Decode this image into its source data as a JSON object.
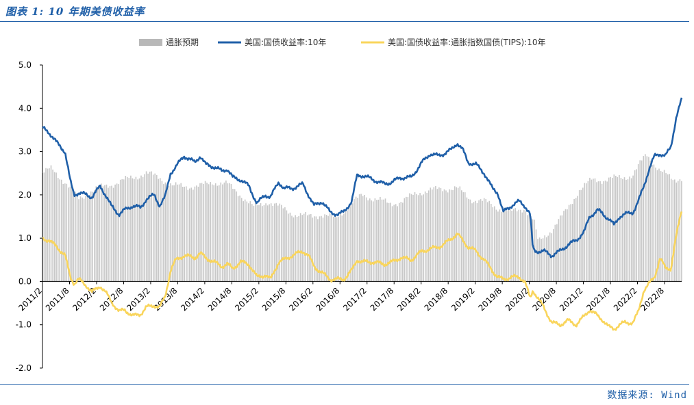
{
  "title": "图表 1: 10 年期美债收益率",
  "source": "数据来源: Wind",
  "colors": {
    "bg": "#ffffff",
    "title": "#1f5fa8",
    "inflation": "#c8c8c8",
    "nominal": "#1f5fa8",
    "tips": "#f9d55c",
    "axis": "#000000"
  },
  "chart_data": {
    "type": "line",
    "title": "10年期美债收益率",
    "xlabel": "",
    "ylabel": "",
    "ylim": [
      -2.0,
      5.0
    ],
    "yticks": [
      "5.0",
      "4.0",
      "3.0",
      "2.0",
      "1.0",
      "0.0",
      "-1.0",
      "-2.0"
    ],
    "ytick_values": [
      5.0,
      4.0,
      3.0,
      2.0,
      1.0,
      0.0,
      -1.0,
      -2.0
    ],
    "x_ticks": [
      "2011/2",
      "2011/8",
      "2012/2",
      "2012/8",
      "2013/2",
      "2013/8",
      "2014/2",
      "2014/8",
      "2015/2",
      "2015/8",
      "2016/2",
      "2016/8",
      "2017/2",
      "2017/8",
      "2018/2",
      "2018/8",
      "2019/2",
      "2019/8",
      "2020/2",
      "2020/8",
      "2021/2",
      "2021/8",
      "2022/2",
      "2022/8"
    ],
    "x_range": [
      2011.083,
      2022.9
    ],
    "legend_position": "top",
    "series": [
      {
        "name": "通胀预期",
        "type": "bar",
        "x": [
          2011.08,
          2011.25,
          2011.5,
          2011.75,
          2012.0,
          2012.25,
          2012.5,
          2012.75,
          2013.0,
          2013.25,
          2013.5,
          2013.75,
          2014.0,
          2014.25,
          2014.5,
          2014.75,
          2015.0,
          2015.25,
          2015.5,
          2015.75,
          2016.0,
          2016.25,
          2016.5,
          2016.75,
          2017.0,
          2017.25,
          2017.5,
          2017.75,
          2018.0,
          2018.25,
          2018.5,
          2018.75,
          2019.0,
          2019.25,
          2019.5,
          2019.75,
          2020.0,
          2020.17,
          2020.25,
          2020.5,
          2020.75,
          2021.0,
          2021.25,
          2021.5,
          2021.75,
          2022.0,
          2022.25,
          2022.5,
          2022.75,
          2022.9
        ],
        "values": [
          2.5,
          2.6,
          2.3,
          1.9,
          2.1,
          2.2,
          2.3,
          2.4,
          2.5,
          2.4,
          2.2,
          2.2,
          2.2,
          2.3,
          2.25,
          2.0,
          1.7,
          1.85,
          1.7,
          1.55,
          1.5,
          1.55,
          1.45,
          1.75,
          2.0,
          1.9,
          1.8,
          1.85,
          2.05,
          2.1,
          2.15,
          2.15,
          1.9,
          1.85,
          1.7,
          1.6,
          1.7,
          1.4,
          0.9,
          1.2,
          1.6,
          2.1,
          2.35,
          2.35,
          2.4,
          2.45,
          2.95,
          2.55,
          2.35,
          2.4
        ]
      },
      {
        "name": "美国:国债收益率:10年",
        "type": "line",
        "x": [
          2011.08,
          2011.2,
          2011.35,
          2011.5,
          2011.6,
          2011.67,
          2011.75,
          2011.9,
          2012.0,
          2012.15,
          2012.25,
          2012.35,
          2012.5,
          2012.6,
          2012.75,
          2012.9,
          2013.0,
          2013.15,
          2013.25,
          2013.35,
          2013.45,
          2013.55,
          2013.7,
          2013.9,
          2014.0,
          2014.1,
          2014.25,
          2014.4,
          2014.5,
          2014.6,
          2014.75,
          2014.9,
          2015.05,
          2015.2,
          2015.3,
          2015.45,
          2015.55,
          2015.7,
          2015.9,
          2016.0,
          2016.1,
          2016.25,
          2016.4,
          2016.55,
          2016.65,
          2016.8,
          2016.9,
          2017.0,
          2017.2,
          2017.4,
          2017.55,
          2017.7,
          2017.9,
          2018.1,
          2018.25,
          2018.4,
          2018.5,
          2018.65,
          2018.75,
          2018.85,
          2018.95,
          2019.1,
          2019.25,
          2019.4,
          2019.5,
          2019.6,
          2019.75,
          2019.9,
          2020.0,
          2020.1,
          2020.15,
          2020.2,
          2020.35,
          2020.5,
          2020.65,
          2020.8,
          2020.95,
          2021.1,
          2021.2,
          2021.35,
          2021.45,
          2021.55,
          2021.65,
          2021.75,
          2021.85,
          2022.0,
          2022.1,
          2022.2,
          2022.3,
          2022.4,
          2022.5,
          2022.6,
          2022.7,
          2022.8,
          2022.9
        ],
        "values": [
          3.55,
          3.45,
          3.2,
          3.0,
          2.3,
          2.0,
          2.05,
          2.0,
          1.95,
          2.2,
          2.0,
          1.75,
          1.55,
          1.65,
          1.75,
          1.7,
          1.9,
          2.0,
          1.75,
          1.95,
          2.5,
          2.65,
          2.9,
          2.75,
          2.9,
          2.7,
          2.65,
          2.55,
          2.6,
          2.4,
          2.35,
          2.2,
          1.8,
          2.0,
          1.95,
          2.3,
          2.15,
          2.15,
          2.25,
          2.0,
          1.75,
          1.85,
          1.6,
          1.55,
          1.6,
          1.85,
          2.45,
          2.45,
          2.35,
          2.25,
          2.3,
          2.4,
          2.4,
          2.75,
          2.95,
          2.9,
          2.95,
          3.05,
          3.2,
          3.05,
          2.75,
          2.7,
          2.5,
          2.15,
          2.05,
          1.6,
          1.75,
          1.85,
          1.75,
          1.55,
          0.75,
          0.7,
          0.7,
          0.6,
          0.7,
          0.85,
          0.95,
          1.15,
          1.5,
          1.65,
          1.55,
          1.45,
          1.3,
          1.5,
          1.55,
          1.6,
          1.85,
          2.2,
          2.6,
          2.9,
          2.95,
          2.9,
          3.1,
          3.8,
          4.2
        ]
      },
      {
        "name": "美国:国债收益率:通胀指数国债(TIPS):10年",
        "type": "line",
        "x": [
          2011.08,
          2011.2,
          2011.35,
          2011.5,
          2011.6,
          2011.67,
          2011.75,
          2011.9,
          2012.0,
          2012.15,
          2012.25,
          2012.35,
          2012.5,
          2012.6,
          2012.75,
          2012.9,
          2013.0,
          2013.15,
          2013.25,
          2013.35,
          2013.45,
          2013.55,
          2013.7,
          2013.9,
          2014.0,
          2014.1,
          2014.25,
          2014.4,
          2014.5,
          2014.6,
          2014.75,
          2014.9,
          2015.05,
          2015.2,
          2015.3,
          2015.45,
          2015.55,
          2015.7,
          2015.9,
          2016.0,
          2016.1,
          2016.25,
          2016.4,
          2016.55,
          2016.65,
          2016.8,
          2016.9,
          2017.0,
          2017.2,
          2017.4,
          2017.55,
          2017.7,
          2017.9,
          2018.1,
          2018.25,
          2018.4,
          2018.5,
          2018.65,
          2018.75,
          2018.85,
          2018.95,
          2019.1,
          2019.25,
          2019.4,
          2019.5,
          2019.6,
          2019.75,
          2019.9,
          2020.0,
          2020.1,
          2020.15,
          2020.2,
          2020.35,
          2020.5,
          2020.65,
          2020.8,
          2020.95,
          2021.1,
          2021.2,
          2021.35,
          2021.45,
          2021.55,
          2021.65,
          2021.75,
          2021.85,
          2022.0,
          2022.1,
          2022.2,
          2022.3,
          2022.4,
          2022.5,
          2022.6,
          2022.7,
          2022.8,
          2022.9
        ],
        "values": [
          1.0,
          0.95,
          0.8,
          0.6,
          0.1,
          -0.05,
          0.05,
          -0.1,
          -0.25,
          -0.1,
          -0.25,
          -0.45,
          -0.7,
          -0.65,
          -0.8,
          -0.75,
          -0.6,
          -0.55,
          -0.6,
          -0.35,
          0.25,
          0.5,
          0.6,
          0.55,
          0.65,
          0.55,
          0.45,
          0.35,
          0.4,
          0.3,
          0.45,
          0.4,
          0.1,
          0.15,
          0.05,
          0.45,
          0.5,
          0.6,
          0.7,
          0.6,
          0.35,
          0.2,
          0.05,
          0.05,
          0.05,
          0.25,
          0.5,
          0.45,
          0.45,
          0.4,
          0.45,
          0.55,
          0.5,
          0.7,
          0.75,
          0.8,
          0.85,
          1.0,
          1.1,
          0.95,
          0.8,
          0.7,
          0.5,
          0.25,
          0.1,
          0.05,
          0.1,
          0.1,
          0.0,
          -0.4,
          -0.2,
          -0.3,
          -0.6,
          -0.95,
          -1.0,
          -0.9,
          -1.0,
          -0.8,
          -0.65,
          -0.8,
          -0.9,
          -1.05,
          -1.1,
          -1.0,
          -0.95,
          -0.95,
          -0.7,
          -0.2,
          -0.05,
          0.1,
          0.55,
          0.3,
          0.3,
          1.05,
          1.65
        ]
      }
    ]
  }
}
